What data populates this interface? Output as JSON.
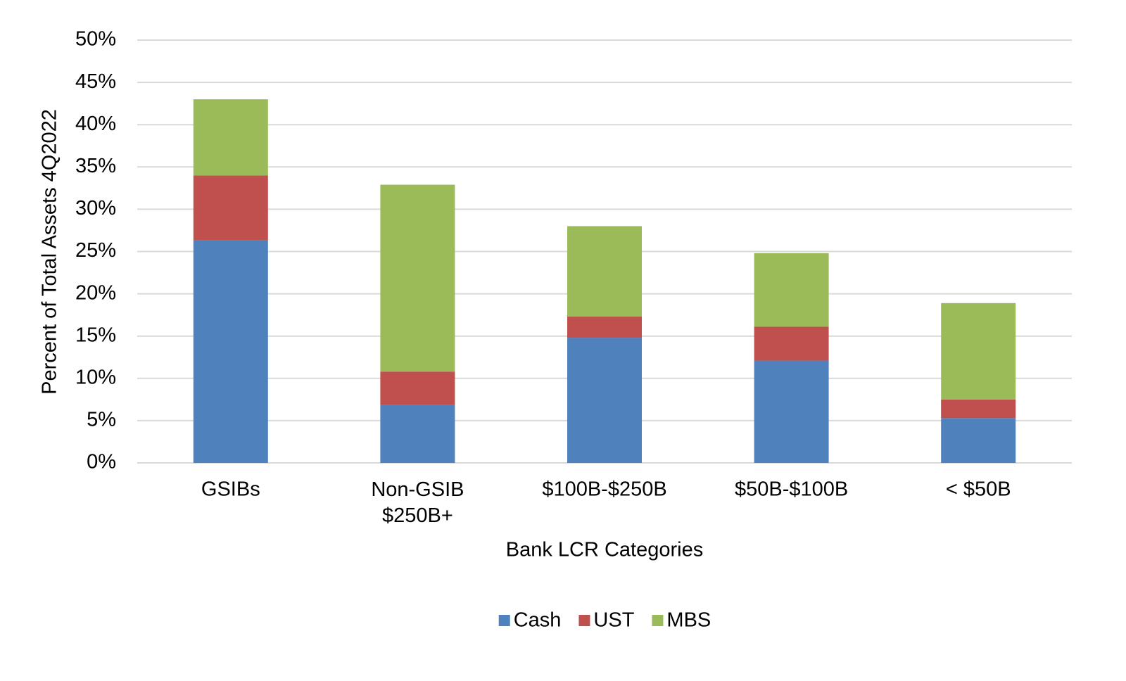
{
  "chart_data": {
    "type": "stacked_bar",
    "x_label": "Bank LCR Categories",
    "y_label": "Percent of Total Assets 4Q2022",
    "categories": [
      "GSIBs",
      "Non-GSIB\n$250B+",
      "$100B-$250B",
      "$50B-$100B",
      "< $50B"
    ],
    "series": [
      {
        "name": "Cash",
        "color": "#4f81bd",
        "values": [
          26.3,
          6.9,
          14.8,
          12.1,
          5.3
        ]
      },
      {
        "name": "UST",
        "color": "#c0504d",
        "values": [
          7.7,
          3.9,
          2.5,
          4.0,
          2.2
        ]
      },
      {
        "name": "MBS",
        "color": "#9bbb59",
        "values": [
          9.0,
          22.1,
          10.7,
          8.7,
          11.4
        ]
      }
    ],
    "ylim": [
      0,
      50
    ],
    "yticks": [
      {
        "value": 0,
        "label": "0%"
      },
      {
        "value": 5,
        "label": "5%"
      },
      {
        "value": 10,
        "label": "10%"
      },
      {
        "value": 15,
        "label": "15%"
      },
      {
        "value": 20,
        "label": "20%"
      },
      {
        "value": 25,
        "label": "25%"
      },
      {
        "value": 30,
        "label": "30%"
      },
      {
        "value": 35,
        "label": "35%"
      },
      {
        "value": 40,
        "label": "40%"
      },
      {
        "value": 45,
        "label": "45%"
      },
      {
        "value": 50,
        "label": "50%"
      }
    ],
    "grid": true,
    "legend": "bottom"
  }
}
